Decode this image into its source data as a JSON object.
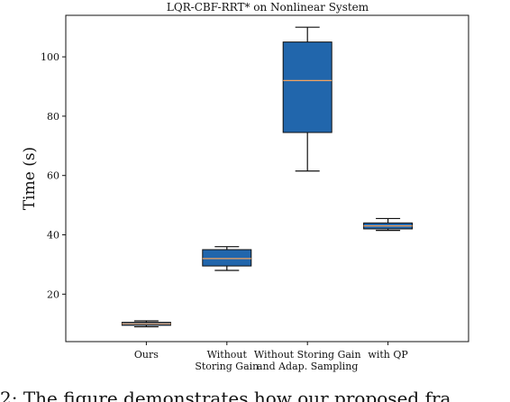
{
  "chart_data": {
    "type": "box",
    "title": "LQR-CBF-RRT* on Nonlinear System",
    "ylabel": "Time (s)",
    "xlabel": "",
    "ylim": [
      4,
      114
    ],
    "yticks": [
      20,
      40,
      60,
      80,
      100
    ],
    "grid": false,
    "box_color": "#2166ac",
    "median_color": "#f4a460",
    "categories": [
      {
        "label": [
          "Ours"
        ],
        "whisker_low": 9.0,
        "q1": 9.5,
        "median": 10.0,
        "q3": 10.5,
        "whisker_high": 11.0
      },
      {
        "label": [
          "Without",
          "Storing Gain"
        ],
        "whisker_low": 28.0,
        "q1": 29.5,
        "median": 32.0,
        "q3": 35.0,
        "whisker_high": 36.0
      },
      {
        "label": [
          "Without Storing Gain",
          "and Adap. Sampling"
        ],
        "whisker_low": 61.5,
        "q1": 74.5,
        "median": 92.0,
        "q3": 105.0,
        "whisker_high": 110.0
      },
      {
        "label": [
          "with QP"
        ],
        "whisker_low": 41.5,
        "q1": 42.0,
        "median": 43.0,
        "q3": 44.0,
        "whisker_high": 45.5
      }
    ]
  },
  "caption": "2: The figure demonstrates how our proposed fra"
}
